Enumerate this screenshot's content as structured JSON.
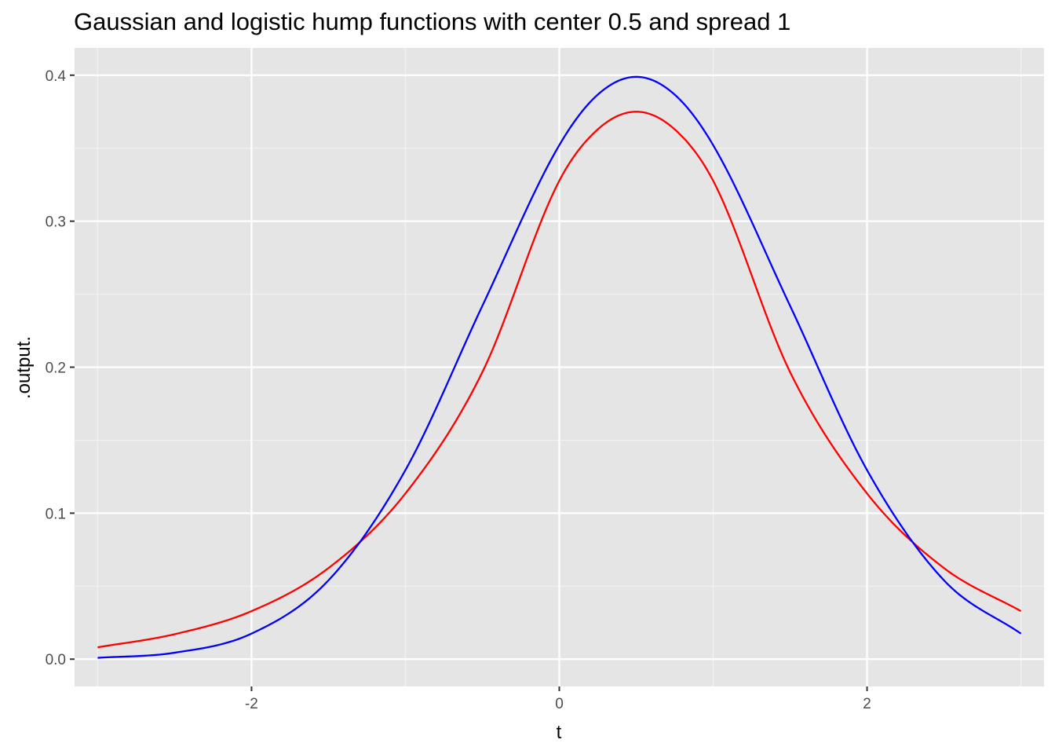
{
  "chart_data": {
    "type": "line",
    "title": "Gaussian and logistic hump functions with center 0.5 and spread 1",
    "xlabel": "t",
    "ylabel": ".output.",
    "xlim": [
      -3.15,
      3.15
    ],
    "ylim": [
      -0.0187,
      0.4187
    ],
    "x_ticks": [
      -2,
      0,
      2
    ],
    "y_ticks": [
      0.0,
      0.1,
      0.2,
      0.3,
      0.4
    ],
    "x_tick_labels": [
      "-2",
      "0",
      "2"
    ],
    "y_tick_labels": [
      "0.0",
      "0.1",
      "0.2",
      "0.3",
      "0.4"
    ],
    "grid": true,
    "background": "#e5e5e5",
    "legend": "none",
    "x": [
      -3.0,
      -2.5,
      -2.0,
      -1.5,
      -1.0,
      -0.5,
      0.0,
      0.25,
      0.5,
      0.75,
      1.0,
      1.5,
      2.0,
      2.5,
      3.0
    ],
    "series": [
      {
        "color": "#ff0000",
        "values": [
          0.0081,
          0.0171,
          0.0329,
          0.0624,
          0.1135,
          0.1966,
          0.3277,
          0.3629,
          0.375,
          0.3629,
          0.3277,
          0.1966,
          0.1135,
          0.0624,
          0.0329
        ]
      },
      {
        "color": "#0000ff",
        "values": [
          0.0009,
          0.0044,
          0.0175,
          0.054,
          0.1295,
          0.242,
          0.3521,
          0.3867,
          0.3989,
          0.3867,
          0.3521,
          0.242,
          0.1295,
          0.054,
          0.0175
        ]
      }
    ]
  }
}
